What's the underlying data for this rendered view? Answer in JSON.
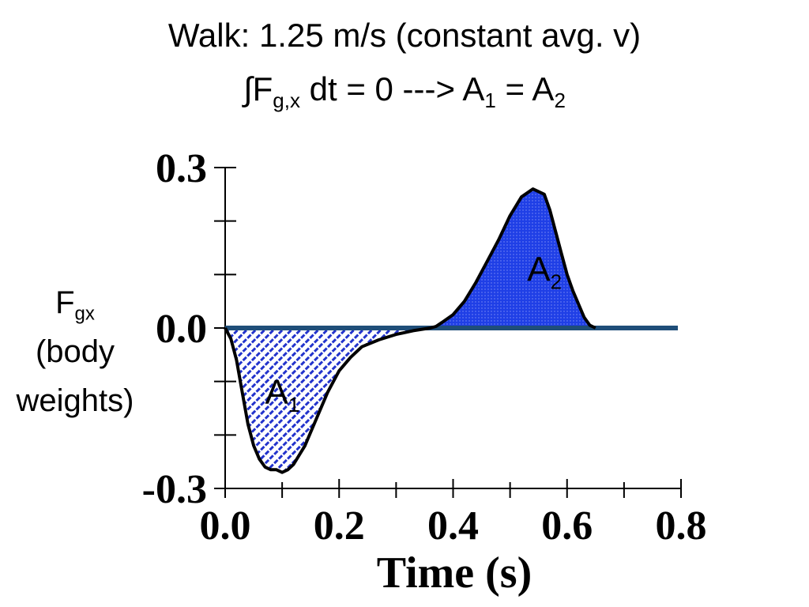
{
  "title": {
    "line1": "Walk: 1.25 m/s (constant avg. v)",
    "line2_prefix": "∫F",
    "line2_sub1": "g,x",
    "line2_middle": " dt = 0 ---> A",
    "line2_sub2": "1",
    "line2_eq": " = A",
    "line2_sub3": "2"
  },
  "ylabel": {
    "main": "F",
    "sub": "gx",
    "line2": "(body",
    "line3": "weights)"
  },
  "colors": {
    "fill": "#1f3fe6",
    "zero_line": "#1f4e79",
    "curve": "#000000",
    "hatch": "#2233cc"
  },
  "chart_data": {
    "type": "line",
    "title": "Walk: 1.25 m/s (constant avg. v)",
    "xlabel": "Time (s)",
    "ylabel": "Fgx (body weights)",
    "xlim": [
      0.0,
      0.8
    ],
    "ylim": [
      -0.3,
      0.3
    ],
    "x_ticks": [
      "0.0",
      "0.2",
      "0.4",
      "0.6",
      "0.8"
    ],
    "y_ticks": [
      "0.3",
      "0.0",
      "-0.3"
    ],
    "x_tick_values": [
      0.0,
      0.2,
      0.4,
      0.6,
      0.8
    ],
    "y_tick_values": [
      0.3,
      0.0,
      -0.3
    ],
    "y_minor_ticks": [
      0.2,
      0.1,
      -0.1,
      -0.2
    ],
    "x_minor_ticks": [
      0.1,
      0.3,
      0.5,
      0.7
    ],
    "series": [
      {
        "x": [
          0.0,
          0.01,
          0.02,
          0.03,
          0.04,
          0.05,
          0.06,
          0.07,
          0.08,
          0.09,
          0.1,
          0.11,
          0.12,
          0.14,
          0.16,
          0.18,
          0.2,
          0.22,
          0.24,
          0.27,
          0.3,
          0.33,
          0.36,
          0.37,
          0.38,
          0.4,
          0.42,
          0.44,
          0.46,
          0.48,
          0.5,
          0.52,
          0.54,
          0.56,
          0.57,
          0.58,
          0.59,
          0.6,
          0.61,
          0.62,
          0.63,
          0.64,
          0.65
        ],
        "y": [
          0.0,
          -0.02,
          -0.06,
          -0.12,
          -0.18,
          -0.22,
          -0.245,
          -0.26,
          -0.265,
          -0.265,
          -0.27,
          -0.265,
          -0.255,
          -0.22,
          -0.17,
          -0.12,
          -0.08,
          -0.055,
          -0.035,
          -0.022,
          -0.012,
          -0.005,
          0.0,
          0.003,
          0.01,
          0.025,
          0.05,
          0.085,
          0.125,
          0.165,
          0.21,
          0.245,
          0.26,
          0.25,
          0.22,
          0.18,
          0.14,
          0.1,
          0.07,
          0.045,
          0.02,
          0.005,
          0.0
        ]
      }
    ],
    "annotations": [
      {
        "text": "A",
        "sub": "1",
        "x": 0.07,
        "y": -0.12
      },
      {
        "text": "A",
        "sub": "2",
        "x": 0.53,
        "y": 0.11
      }
    ],
    "grid": false,
    "legend": "none"
  }
}
